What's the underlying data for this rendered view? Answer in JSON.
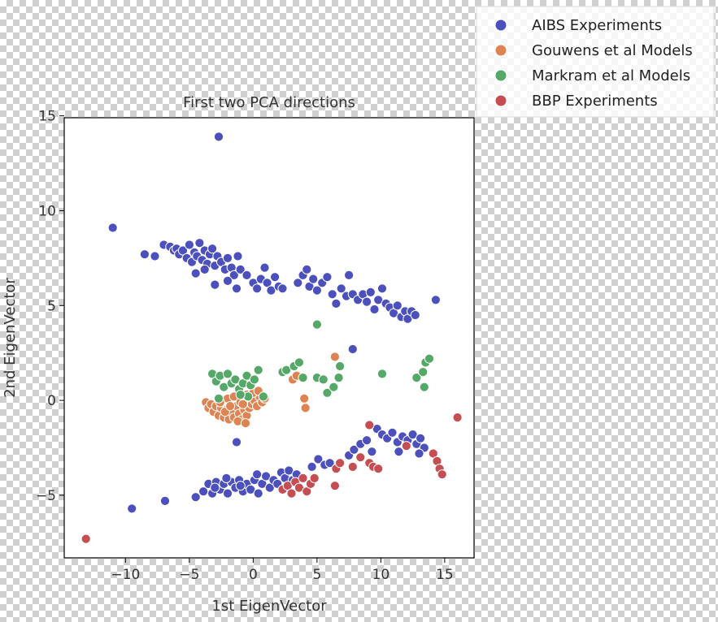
{
  "chart_data": {
    "type": "scatter",
    "title": "First two PCA directions",
    "xlabel": "1st EigenVector",
    "ylabel": "2nd EigenVector",
    "xlim": [
      -14.8,
      17.3
    ],
    "ylim": [
      -8.3,
      14.9
    ],
    "xticks": [
      -10,
      -5,
      0,
      5,
      10,
      15
    ],
    "yticks": [
      -5,
      0,
      5,
      10,
      15
    ],
    "grid": false,
    "legend_position": "top-right, outside plot",
    "series": [
      {
        "name": "AIBS Experiments",
        "color": "#4c50bd",
        "points": [
          [
            -2.7,
            13.9
          ],
          [
            -11.0,
            9.1
          ],
          [
            -8.5,
            7.7
          ],
          [
            -7.7,
            7.6
          ],
          [
            -7.0,
            8.2
          ],
          [
            -6.5,
            8.1
          ],
          [
            -6.2,
            7.9
          ],
          [
            -6.0,
            8.0
          ],
          [
            -5.8,
            7.7
          ],
          [
            -5.5,
            7.9
          ],
          [
            -5.2,
            7.5
          ],
          [
            -5.0,
            8.2
          ],
          [
            -4.8,
            7.3
          ],
          [
            -4.6,
            7.8
          ],
          [
            -4.4,
            7.6
          ],
          [
            -4.2,
            8.3
          ],
          [
            -4.0,
            7.4
          ],
          [
            -3.8,
            7.9
          ],
          [
            -3.6,
            7.2
          ],
          [
            -3.4,
            7.7
          ],
          [
            -3.2,
            8.0
          ],
          [
            -3.0,
            7.1
          ],
          [
            -2.8,
            7.6
          ],
          [
            -2.5,
            7.3
          ],
          [
            -2.2,
            6.9
          ],
          [
            -2.0,
            7.5
          ],
          [
            -1.7,
            7.0
          ],
          [
            -1.5,
            6.6
          ],
          [
            -1.2,
            7.6
          ],
          [
            -1.0,
            6.9
          ],
          [
            -4.5,
            6.7
          ],
          [
            -3.8,
            6.9
          ],
          [
            -3.0,
            6.1
          ],
          [
            -2.0,
            6.3
          ],
          [
            -1.3,
            5.9
          ],
          [
            -0.5,
            6.6
          ],
          [
            0.0,
            6.2
          ],
          [
            0.3,
            5.9
          ],
          [
            0.6,
            6.4
          ],
          [
            0.9,
            7.0
          ],
          [
            1.1,
            6.2
          ],
          [
            1.4,
            5.8
          ],
          [
            1.7,
            6.5
          ],
          [
            2.0,
            6.0
          ],
          [
            2.3,
            5.9
          ],
          [
            3.5,
            6.2
          ],
          [
            3.9,
            6.6
          ],
          [
            4.2,
            6.9
          ],
          [
            4.4,
            6.0
          ],
          [
            4.7,
            6.4
          ],
          [
            5.0,
            5.8
          ],
          [
            5.4,
            6.2
          ],
          [
            5.8,
            6.5
          ],
          [
            6.2,
            5.6
          ],
          [
            6.5,
            5.1
          ],
          [
            6.9,
            5.9
          ],
          [
            7.3,
            5.5
          ],
          [
            7.5,
            6.6
          ],
          [
            7.8,
            5.6
          ],
          [
            8.2,
            5.3
          ],
          [
            8.6,
            5.6
          ],
          [
            8.9,
            5.2
          ],
          [
            9.2,
            5.7
          ],
          [
            9.5,
            4.8
          ],
          [
            9.8,
            5.3
          ],
          [
            10.1,
            5.9
          ],
          [
            10.4,
            5.1
          ],
          [
            10.7,
            4.9
          ],
          [
            11.0,
            4.6
          ],
          [
            11.3,
            5.0
          ],
          [
            11.6,
            4.4
          ],
          [
            11.9,
            4.7
          ],
          [
            12.1,
            4.3
          ],
          [
            12.4,
            4.7
          ],
          [
            12.7,
            4.5
          ],
          [
            14.3,
            5.3
          ],
          [
            7.8,
            2.7
          ],
          [
            -1.3,
            -2.2
          ],
          [
            -4.5,
            -5.1
          ],
          [
            -3.9,
            -4.8
          ],
          [
            -3.5,
            -4.4
          ],
          [
            -3.2,
            -4.9
          ],
          [
            -2.9,
            -4.3
          ],
          [
            -2.6,
            -4.7
          ],
          [
            -2.3,
            -4.4
          ],
          [
            -2.0,
            -4.9
          ],
          [
            -1.7,
            -4.3
          ],
          [
            -1.4,
            -4.6
          ],
          [
            -1.1,
            -4.2
          ],
          [
            -0.8,
            -4.8
          ],
          [
            -0.5,
            -4.4
          ],
          [
            -0.2,
            -4.7
          ],
          [
            0.1,
            -4.2
          ],
          [
            0.4,
            -4.9
          ],
          [
            0.7,
            -4.4
          ],
          [
            1.0,
            -4.0
          ],
          [
            1.3,
            -4.6
          ],
          [
            1.6,
            -4.2
          ],
          [
            1.9,
            -4.4
          ],
          [
            2.2,
            -3.8
          ],
          [
            2.5,
            -4.1
          ],
          [
            2.8,
            -3.7
          ],
          [
            3.1,
            -4.2
          ],
          [
            3.4,
            -3.9
          ],
          [
            -3.0,
            -4.6
          ],
          [
            -2.1,
            -4.1
          ],
          [
            -1.0,
            -4.5
          ],
          [
            0.3,
            -3.9
          ],
          [
            -9.5,
            -5.7
          ],
          [
            -6.9,
            -5.3
          ],
          [
            4.6,
            -3.5
          ],
          [
            5.1,
            -3.1
          ],
          [
            5.6,
            -3.4
          ],
          [
            6.0,
            -3.3
          ],
          [
            7.5,
            -2.9
          ],
          [
            7.9,
            -2.6
          ],
          [
            8.4,
            -2.3
          ],
          [
            8.9,
            -2.1
          ],
          [
            9.3,
            -2.7
          ],
          [
            9.7,
            -1.5
          ],
          [
            10.1,
            -1.8
          ],
          [
            10.5,
            -2.0
          ],
          [
            10.9,
            -1.7
          ],
          [
            11.3,
            -2.2
          ],
          [
            11.7,
            -1.9
          ],
          [
            12.1,
            -2.1
          ],
          [
            12.5,
            -1.8
          ],
          [
            12.8,
            -2.3
          ],
          [
            13.1,
            -2.0
          ],
          [
            13.4,
            -2.5
          ],
          [
            13.0,
            -2.8
          ],
          [
            11.4,
            -2.7
          ]
        ]
      },
      {
        "name": "Gouwens et al Models",
        "color": "#dd8452",
        "points": [
          [
            -3.7,
            -0.1
          ],
          [
            -3.5,
            -0.4
          ],
          [
            -3.3,
            -0.2
          ],
          [
            -3.1,
            -0.6
          ],
          [
            -2.9,
            -0.3
          ],
          [
            -2.7,
            -0.8
          ],
          [
            -2.5,
            -0.4
          ],
          [
            -2.3,
            -0.9
          ],
          [
            -2.1,
            -0.5
          ],
          [
            -1.9,
            -1.0
          ],
          [
            -1.7,
            -0.6
          ],
          [
            -1.5,
            -0.9
          ],
          [
            -1.3,
            -0.3
          ],
          [
            -1.1,
            -0.7
          ],
          [
            -0.9,
            -1.0
          ],
          [
            -0.7,
            -0.5
          ],
          [
            -0.5,
            -0.8
          ],
          [
            -0.3,
            -0.4
          ],
          [
            -0.1,
            -0.2
          ],
          [
            0.1,
            0.0
          ],
          [
            0.3,
            -0.3
          ],
          [
            0.5,
            0.2
          ],
          [
            0.7,
            -0.1
          ],
          [
            0.9,
            0.1
          ],
          [
            -2.0,
            0.1
          ],
          [
            -1.5,
            0.2
          ],
          [
            -1.0,
            -0.1
          ],
          [
            -0.5,
            0.3
          ],
          [
            0.0,
            0.4
          ],
          [
            0.4,
            0.5
          ],
          [
            -2.6,
            -0.1
          ],
          [
            -2.2,
            -0.6
          ],
          [
            -1.2,
            -1.1
          ],
          [
            -0.6,
            -1.2
          ],
          [
            -1.8,
            -0.3
          ],
          [
            -0.8,
            -0.2
          ],
          [
            3.1,
            1.1
          ],
          [
            3.4,
            1.3
          ],
          [
            4.0,
            0.1
          ],
          [
            4.1,
            -0.4
          ],
          [
            6.4,
            2.3
          ]
        ]
      },
      {
        "name": "Markram et al Models",
        "color": "#55a868",
        "points": [
          [
            5.0,
            4.0
          ],
          [
            -3.2,
            1.4
          ],
          [
            -2.9,
            1.0
          ],
          [
            -2.6,
            1.3
          ],
          [
            -2.3,
            0.7
          ],
          [
            -2.0,
            1.4
          ],
          [
            -1.7,
            0.9
          ],
          [
            -1.4,
            1.1
          ],
          [
            -1.1,
            0.6
          ],
          [
            -0.8,
            0.9
          ],
          [
            -0.5,
            1.3
          ],
          [
            -0.2,
            0.8
          ],
          [
            0.1,
            1.1
          ],
          [
            0.4,
            1.6
          ],
          [
            -0.4,
            0.2
          ],
          [
            -1.0,
            0.3
          ],
          [
            -2.7,
            0.1
          ],
          [
            0.8,
            0.2
          ],
          [
            2.3,
            1.5
          ],
          [
            2.6,
            1.6
          ],
          [
            3.2,
            1.8
          ],
          [
            3.6,
            2.0
          ],
          [
            3.9,
            1.2
          ],
          [
            5.0,
            1.2
          ],
          [
            5.5,
            1.1
          ],
          [
            5.8,
            0.4
          ],
          [
            6.3,
            0.7
          ],
          [
            6.8,
            1.8
          ],
          [
            6.7,
            1.2
          ],
          [
            10.1,
            1.4
          ],
          [
            12.8,
            1.2
          ],
          [
            13.3,
            1.5
          ],
          [
            13.5,
            2.0
          ],
          [
            13.8,
            2.2
          ],
          [
            13.4,
            0.7
          ]
        ]
      },
      {
        "name": "BBP Experiments",
        "color": "#c44e52",
        "points": [
          [
            -13.1,
            -7.3
          ],
          [
            16.0,
            -0.9
          ],
          [
            2.3,
            -4.7
          ],
          [
            2.7,
            -4.5
          ],
          [
            3.0,
            -4.9
          ],
          [
            3.3,
            -4.3
          ],
          [
            3.6,
            -4.6
          ],
          [
            3.9,
            -4.1
          ],
          [
            4.2,
            -4.8
          ],
          [
            4.5,
            -4.4
          ],
          [
            4.8,
            -4.1
          ],
          [
            6.5,
            -3.6
          ],
          [
            6.8,
            -3.3
          ],
          [
            6.4,
            -4.5
          ],
          [
            7.8,
            -3.5
          ],
          [
            8.4,
            -3.0
          ],
          [
            9.1,
            -3.3
          ],
          [
            9.4,
            -3.5
          ],
          [
            9.8,
            -3.6
          ],
          [
            9.1,
            -1.3
          ],
          [
            12.0,
            -2.4
          ],
          [
            14.1,
            -2.8
          ],
          [
            14.4,
            -3.2
          ],
          [
            14.6,
            -3.6
          ],
          [
            14.8,
            -3.9
          ]
        ]
      }
    ]
  }
}
